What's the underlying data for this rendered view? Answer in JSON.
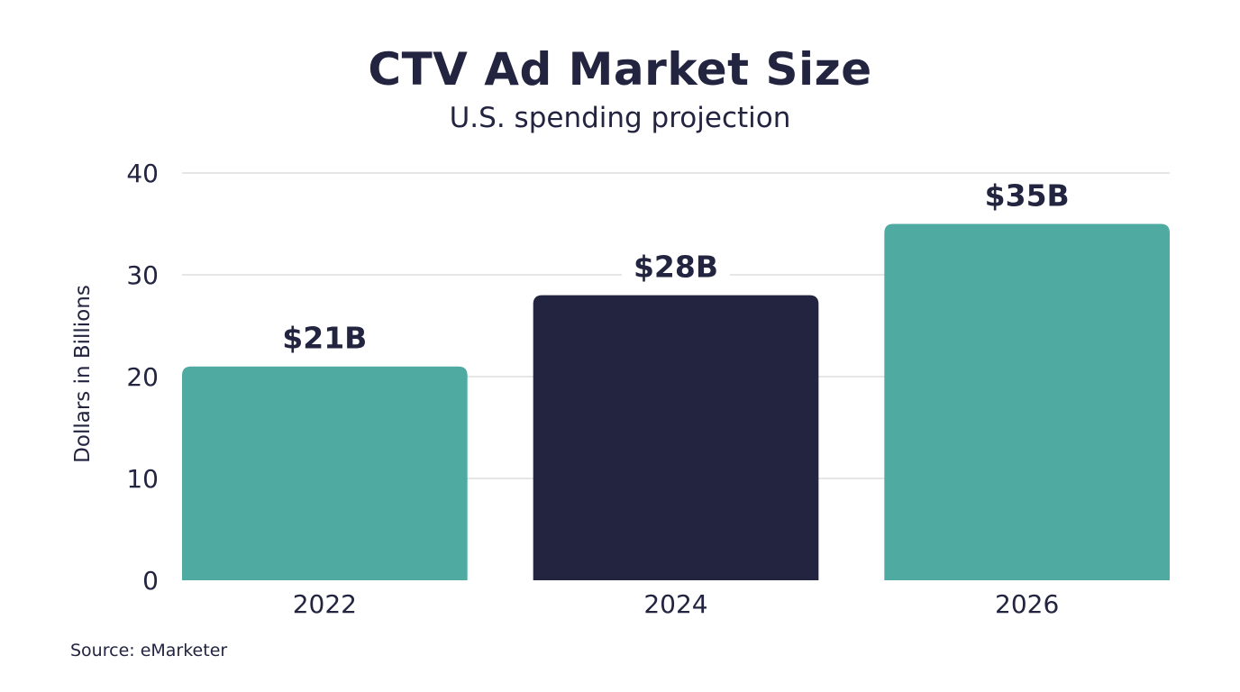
{
  "chart_data": {
    "type": "bar",
    "title": "CTV Ad Market Size",
    "subtitle": "U.S. spending projection",
    "xlabel": "",
    "ylabel": "Dollars in Billions",
    "categories": [
      "2022",
      "2024",
      "2026"
    ],
    "values": [
      21,
      28,
      35
    ],
    "data_labels": [
      "$21B",
      "$28B",
      "$35B"
    ],
    "bar_colors": [
      "#4FAAA2",
      "#222440",
      "#4FAAA2"
    ],
    "ylim": [
      0,
      40
    ],
    "yticks": [
      0,
      10,
      20,
      30,
      40
    ],
    "grid": true,
    "source": "Source: eMarketer"
  }
}
